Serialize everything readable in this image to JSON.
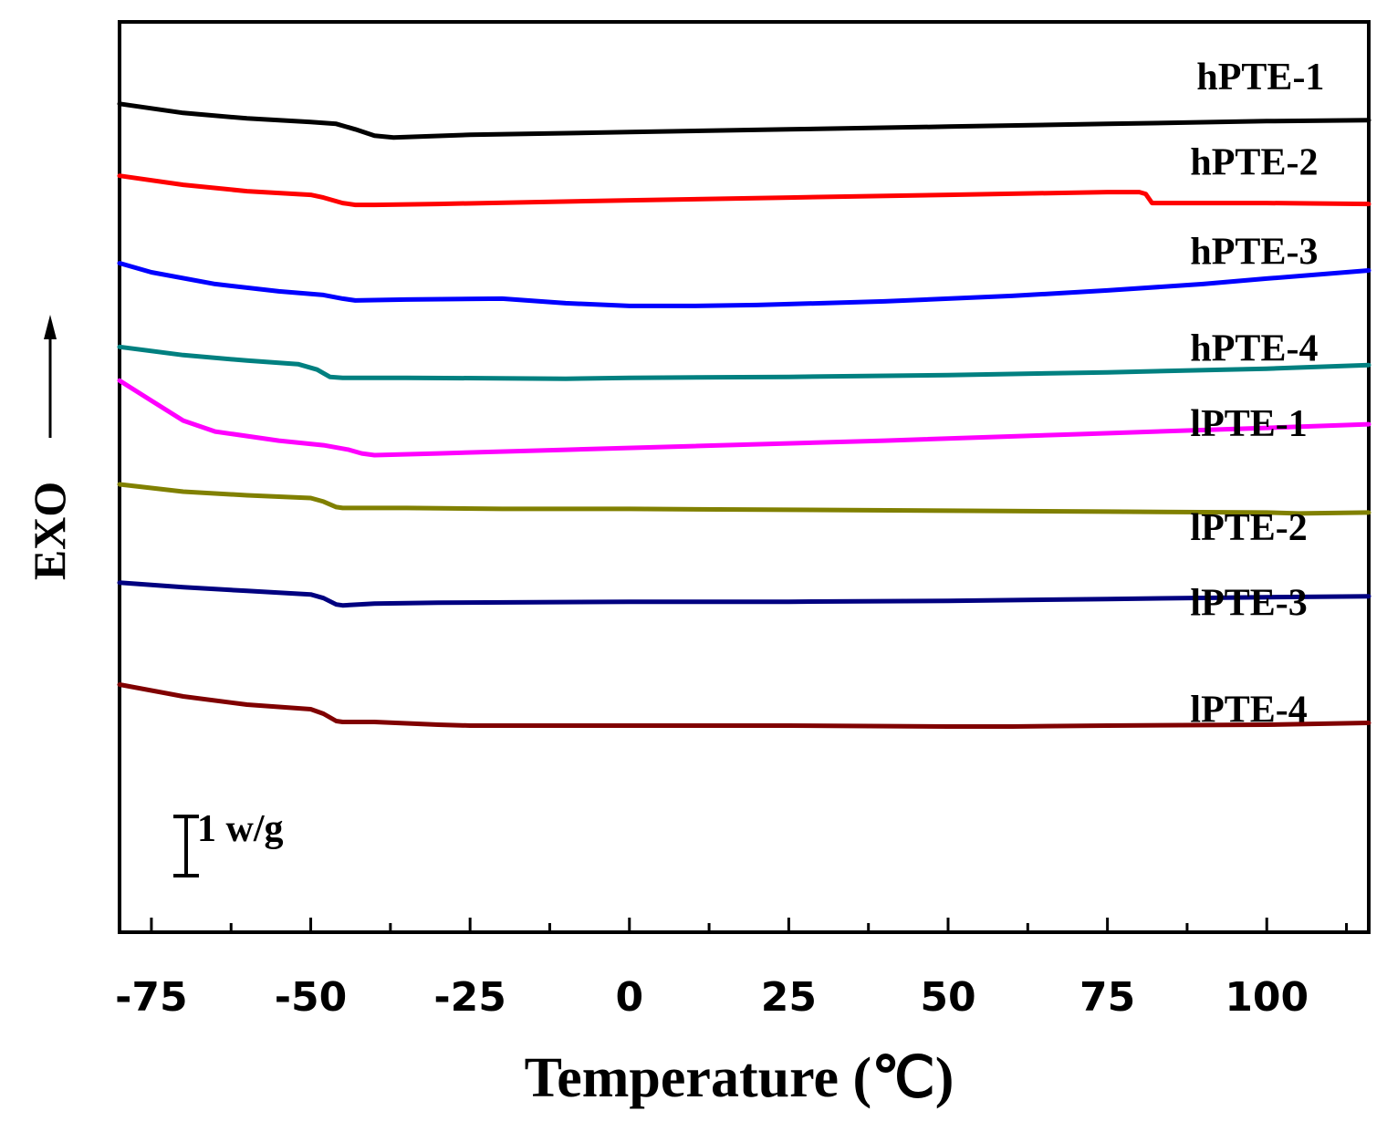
{
  "chart_data": {
    "type": "line",
    "xlabel": "Temperature (℃)",
    "ylabel": "EXO",
    "xlim": [
      -80,
      116
    ],
    "ylim": [
      0,
      10
    ],
    "x_ticks": [
      -75,
      -50,
      -25,
      0,
      25,
      50,
      75,
      100
    ],
    "x_tick_labels": [
      "-75",
      "-50",
      "-25",
      "0",
      "25",
      "50",
      "75",
      "100"
    ],
    "scale_bar": {
      "label": "1 w/g",
      "height_units": 0.65
    },
    "grid": false,
    "series": [
      {
        "name": "hPTE-1",
        "color": "#000000",
        "x": [
          -80,
          -70,
          -60,
          -50,
          -46,
          -43,
          -40,
          -37,
          -33,
          -25,
          0,
          25,
          50,
          75,
          100,
          116
        ],
        "y": [
          9.1,
          9.0,
          8.94,
          8.9,
          8.88,
          8.82,
          8.75,
          8.73,
          8.74,
          8.76,
          8.79,
          8.82,
          8.85,
          8.88,
          8.91,
          8.92
        ]
      },
      {
        "name": "hPTE-2",
        "color": "#ff0000",
        "x": [
          -80,
          -70,
          -60,
          -50,
          -48,
          -45,
          -43,
          -40,
          -30,
          0,
          25,
          50,
          75,
          80,
          81,
          82,
          90,
          100,
          116
        ],
        "y": [
          8.31,
          8.21,
          8.14,
          8.1,
          8.07,
          8.01,
          7.99,
          7.99,
          8.0,
          8.04,
          8.07,
          8.1,
          8.13,
          8.13,
          8.11,
          8.01,
          8.01,
          8.01,
          8.0
        ]
      },
      {
        "name": "hPTE-3",
        "color": "#0000ff",
        "x": [
          -80,
          -75,
          -65,
          -55,
          -48,
          -45,
          -43,
          -35,
          -20,
          -10,
          0,
          10,
          20,
          40,
          60,
          75,
          90,
          100,
          116
        ],
        "y": [
          7.35,
          7.25,
          7.12,
          7.04,
          7.0,
          6.96,
          6.94,
          6.95,
          6.96,
          6.91,
          6.88,
          6.88,
          6.89,
          6.93,
          6.99,
          7.05,
          7.12,
          7.18,
          7.27
        ]
      },
      {
        "name": "hPTE-4",
        "color": "#008080",
        "x": [
          -80,
          -70,
          -60,
          -52,
          -49,
          -47,
          -45,
          -35,
          -10,
          0,
          25,
          50,
          75,
          100,
          116
        ],
        "y": [
          6.43,
          6.34,
          6.28,
          6.24,
          6.18,
          6.1,
          6.09,
          6.09,
          6.08,
          6.09,
          6.1,
          6.12,
          6.15,
          6.19,
          6.23
        ]
      },
      {
        "name": "lPTE-1",
        "color": "#ff00ff",
        "x": [
          -80,
          -75,
          -70,
          -65,
          -55,
          -48,
          -44,
          -42,
          -40,
          -30,
          -10,
          10,
          40,
          70,
          100,
          116
        ],
        "y": [
          6.06,
          5.84,
          5.62,
          5.5,
          5.4,
          5.35,
          5.3,
          5.26,
          5.24,
          5.26,
          5.3,
          5.34,
          5.4,
          5.47,
          5.54,
          5.58
        ]
      },
      {
        "name": "lPTE-2",
        "color": "#808000",
        "x": [
          -80,
          -70,
          -60,
          -50,
          -48,
          -46,
          -45,
          -35,
          -20,
          0,
          25,
          50,
          75,
          100,
          105,
          116
        ],
        "y": [
          4.92,
          4.84,
          4.8,
          4.77,
          4.73,
          4.67,
          4.66,
          4.66,
          4.65,
          4.65,
          4.64,
          4.63,
          4.62,
          4.61,
          4.6,
          4.61
        ]
      },
      {
        "name": "lPTE-3",
        "color": "#000080",
        "x": [
          -80,
          -70,
          -60,
          -50,
          -48,
          -46,
          -45,
          -40,
          -30,
          0,
          25,
          50,
          75,
          100,
          116
        ],
        "y": [
          3.84,
          3.79,
          3.75,
          3.71,
          3.67,
          3.6,
          3.59,
          3.61,
          3.62,
          3.63,
          3.63,
          3.64,
          3.66,
          3.68,
          3.69
        ]
      },
      {
        "name": "lPTE-4",
        "color": "#800000",
        "x": [
          -80,
          -70,
          -60,
          -50,
          -48,
          -46,
          -45,
          -40,
          -30,
          -25,
          0,
          25,
          50,
          60,
          75,
          100,
          116
        ],
        "y": [
          2.72,
          2.59,
          2.5,
          2.45,
          2.4,
          2.32,
          2.31,
          2.31,
          2.28,
          2.27,
          2.27,
          2.27,
          2.26,
          2.26,
          2.27,
          2.28,
          2.3
        ]
      }
    ],
    "annotations": [
      {
        "text": "hPTE-1",
        "x": 89,
        "y": 9.26
      },
      {
        "text": "hPTE-2",
        "x": 88,
        "y": 8.32
      },
      {
        "text": "hPTE-3",
        "x": 88,
        "y": 7.34
      },
      {
        "text": "hPTE-4",
        "x": 88,
        "y": 6.28
      },
      {
        "text": "lPTE-1",
        "x": 88,
        "y": 5.45
      },
      {
        "text": "lPTE-2",
        "x": 88,
        "y": 4.31
      },
      {
        "text": "lPTE-3",
        "x": 88,
        "y": 3.48
      },
      {
        "text": "lPTE-4",
        "x": 88,
        "y": 2.31
      }
    ]
  }
}
